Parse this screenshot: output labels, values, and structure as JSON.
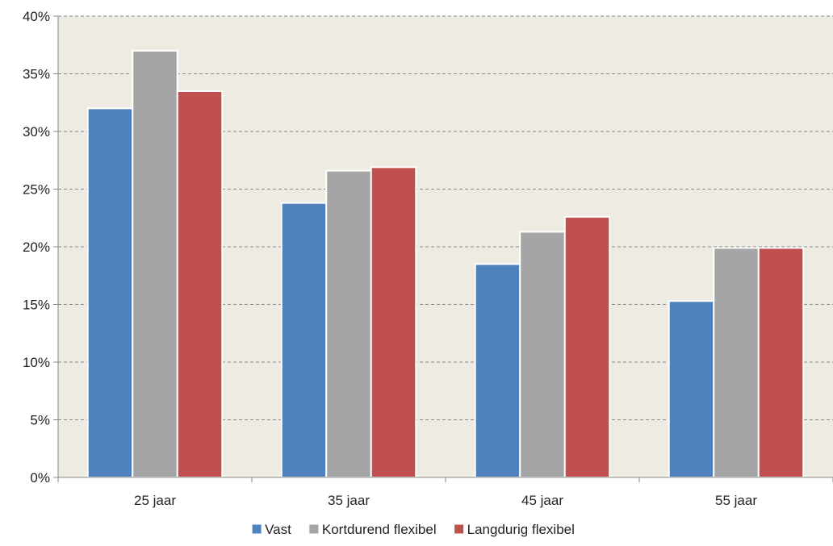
{
  "chart_data": {
    "type": "bar",
    "categories": [
      "25 jaar",
      "35 jaar",
      "45 jaar",
      "55 jaar"
    ],
    "series": [
      {
        "name": "Vast",
        "values": [
          32.0,
          23.8,
          18.5,
          15.3
        ],
        "color": "#4f81bd"
      },
      {
        "name": "Kortdurend flexibel",
        "values": [
          37.0,
          26.6,
          21.3,
          19.9
        ],
        "color": "#a5a5a5"
      },
      {
        "name": "Langdurig flexibel",
        "values": [
          33.5,
          26.9,
          22.6,
          19.9
        ],
        "color": "#c0504d"
      }
    ],
    "y_ticks": [
      "0%",
      "5%",
      "10%",
      "15%",
      "20%",
      "25%",
      "30%",
      "35%",
      "40%"
    ],
    "ylim": [
      0,
      40
    ],
    "y_unit": "%",
    "grid": true,
    "legend_position": "bottom",
    "plot_background": "#eeebe2",
    "title": "",
    "xlabel": "",
    "ylabel": ""
  }
}
